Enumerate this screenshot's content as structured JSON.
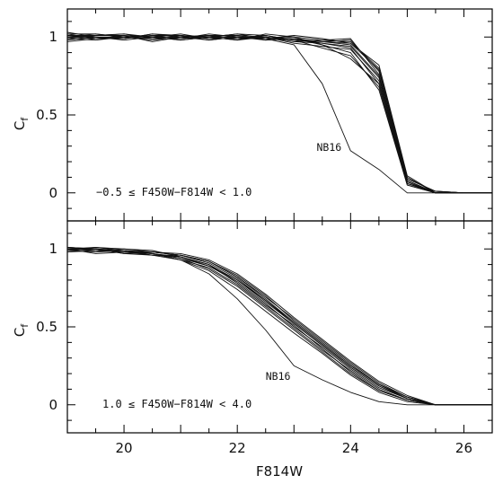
{
  "chart_data": {
    "type": "line",
    "shared_x": {
      "xlabel": "F814W",
      "xlim": [
        19.0,
        26.5
      ],
      "xticks": [
        20,
        22,
        24,
        26
      ],
      "xtick_labels": [
        "20",
        "22",
        "24",
        "26"
      ]
    },
    "panels": [
      {
        "id": "top",
        "ylabel": "C_f",
        "ylim": [
          -0.18,
          1.18
        ],
        "yticks": [
          0,
          0.5,
          1
        ],
        "ytick_labels": [
          "0",
          "0.5",
          "1"
        ],
        "panel_label": "−0.5 ≤ F450W−F814W < 1.0",
        "annotation": {
          "text": "NB16",
          "x": 23.4,
          "y": 0.27
        },
        "x": [
          19.0,
          19.5,
          20.0,
          20.5,
          21.0,
          21.5,
          22.0,
          22.5,
          23.0,
          23.5,
          24.0,
          24.5,
          25.0,
          25.5,
          26.0,
          26.5
        ],
        "series": [
          {
            "values": [
              1.0,
              1.02,
              1.0,
              0.98,
              1.0,
              1.01,
              0.99,
              1.01,
              0.98,
              0.97,
              0.95,
              0.75,
              0.08,
              0.0,
              0.0,
              0.0
            ]
          },
          {
            "values": [
              1.02,
              0.99,
              1.01,
              1.0,
              0.98,
              1.0,
              1.02,
              0.99,
              0.99,
              0.96,
              0.93,
              0.7,
              0.06,
              0.01,
              0.0,
              0.0
            ]
          },
          {
            "values": [
              0.98,
              1.0,
              0.99,
              1.02,
              1.0,
              0.98,
              1.0,
              1.0,
              0.97,
              0.98,
              0.97,
              0.8,
              0.1,
              0.0,
              0.0,
              0.0
            ]
          },
          {
            "values": [
              1.01,
              1.01,
              1.02,
              0.99,
              1.01,
              1.0,
              0.98,
              1.02,
              1.0,
              0.95,
              0.9,
              0.66,
              0.05,
              0.0,
              0.0,
              0.0
            ]
          },
          {
            "values": [
              0.99,
              0.98,
              1.0,
              1.01,
              0.99,
              1.02,
              1.0,
              0.98,
              0.99,
              0.97,
              0.98,
              0.78,
              0.09,
              0.01,
              0.0,
              0.0
            ]
          },
          {
            "values": [
              1.03,
              1.0,
              0.98,
              1.0,
              1.02,
              0.99,
              1.01,
              1.0,
              0.96,
              0.94,
              0.92,
              0.72,
              0.07,
              0.0,
              0.0,
              0.0
            ]
          },
          {
            "values": [
              1.0,
              1.01,
              1.01,
              0.97,
              1.0,
              1.01,
              0.99,
              0.99,
              1.01,
              0.99,
              0.96,
              0.82,
              0.11,
              0.0,
              0.0,
              0.0
            ]
          },
          {
            "values": [
              0.97,
              0.99,
              1.0,
              1.0,
              0.98,
              1.0,
              1.02,
              1.01,
              0.98,
              0.93,
              0.88,
              0.68,
              0.05,
              0.0,
              0.0,
              0.0
            ]
          },
          {
            "values": [
              1.01,
              1.0,
              0.99,
              1.01,
              1.01,
              0.98,
              1.0,
              0.99,
              1.0,
              0.98,
              0.99,
              0.76,
              0.08,
              0.0,
              0.0,
              0.0
            ]
          },
          {
            "values": [
              1.02,
              1.02,
              1.0,
              0.99,
              0.99,
              1.0,
              0.98,
              1.0,
              0.97,
              0.96,
              0.94,
              0.74,
              0.07,
              0.0,
              0.0,
              0.0
            ]
          },
          {
            "values": [
              0.99,
              1.01,
              1.02,
              1.0,
              1.0,
              1.01,
              1.01,
              0.98,
              0.99,
              0.95,
              0.86,
              0.7,
              0.06,
              0.0,
              0.0,
              0.0
            ]
          },
          {
            "values": [
              1.0,
              0.99,
              0.99,
              1.02,
              1.01,
              0.99,
              0.99,
              1.0,
              0.98,
              0.97,
              0.96,
              0.79,
              0.09,
              0.01,
              0.0,
              0.0
            ]
          },
          {
            "name": "NB16",
            "values": [
              1.0,
              1.0,
              1.0,
              1.0,
              1.0,
              1.0,
              1.0,
              0.99,
              0.95,
              0.7,
              0.27,
              0.15,
              0.0,
              0.0,
              0.0,
              0.0
            ]
          }
        ]
      },
      {
        "id": "bottom",
        "ylabel": "C_f",
        "ylim": [
          -0.18,
          1.18
        ],
        "yticks": [
          0,
          0.5,
          1
        ],
        "ytick_labels": [
          "0",
          "0.5",
          "1"
        ],
        "panel_label": "1.0 ≤ F450W−F814W < 4.0",
        "annotation": {
          "text": "NB16",
          "x": 22.5,
          "y": 0.16
        },
        "x": [
          19.0,
          19.5,
          20.0,
          20.5,
          21.0,
          21.5,
          22.0,
          22.5,
          23.0,
          23.5,
          24.0,
          24.5,
          25.0,
          25.5,
          26.0,
          26.5
        ],
        "series": [
          {
            "values": [
              1.0,
              0.99,
              0.98,
              0.97,
              0.95,
              0.9,
              0.8,
              0.66,
              0.52,
              0.38,
              0.24,
              0.12,
              0.04,
              0.0,
              0.0,
              0.0
            ]
          },
          {
            "values": [
              1.01,
              1.0,
              0.99,
              0.96,
              0.93,
              0.88,
              0.77,
              0.63,
              0.49,
              0.35,
              0.22,
              0.1,
              0.03,
              0.0,
              0.0,
              0.0
            ]
          },
          {
            "values": [
              0.99,
              1.0,
              0.97,
              0.98,
              0.96,
              0.92,
              0.82,
              0.69,
              0.55,
              0.41,
              0.27,
              0.14,
              0.05,
              0.0,
              0.0,
              0.0
            ]
          },
          {
            "values": [
              1.0,
              1.01,
              0.99,
              0.97,
              0.94,
              0.89,
              0.79,
              0.65,
              0.5,
              0.37,
              0.23,
              0.11,
              0.04,
              0.0,
              0.0,
              0.0
            ]
          },
          {
            "values": [
              0.98,
              0.99,
              1.0,
              0.98,
              0.96,
              0.91,
              0.81,
              0.67,
              0.53,
              0.39,
              0.25,
              0.13,
              0.04,
              0.0,
              0.0,
              0.0
            ]
          },
          {
            "values": [
              1.0,
              0.97,
              0.98,
              0.96,
              0.95,
              0.9,
              0.78,
              0.64,
              0.51,
              0.36,
              0.21,
              0.09,
              0.03,
              0.0,
              0.0,
              0.0
            ]
          },
          {
            "values": [
              1.01,
              1.0,
              0.98,
              0.98,
              0.97,
              0.93,
              0.84,
              0.71,
              0.56,
              0.42,
              0.28,
              0.15,
              0.06,
              0.0,
              0.0,
              0.0
            ]
          },
          {
            "values": [
              0.99,
              0.98,
              0.99,
              0.97,
              0.94,
              0.87,
              0.76,
              0.62,
              0.48,
              0.34,
              0.2,
              0.09,
              0.03,
              0.0,
              0.0,
              0.0
            ]
          },
          {
            "values": [
              1.0,
              1.0,
              0.97,
              0.96,
              0.96,
              0.92,
              0.83,
              0.7,
              0.54,
              0.4,
              0.26,
              0.13,
              0.05,
              0.0,
              0.0,
              0.0
            ]
          },
          {
            "values": [
              0.99,
              1.01,
              1.0,
              0.99,
              0.95,
              0.89,
              0.8,
              0.67,
              0.52,
              0.38,
              0.24,
              0.12,
              0.04,
              0.0,
              0.0,
              0.0
            ]
          },
          {
            "values": [
              1.0,
              0.99,
              0.98,
              0.97,
              0.93,
              0.86,
              0.74,
              0.6,
              0.46,
              0.33,
              0.19,
              0.08,
              0.02,
              0.0,
              0.0,
              0.0
            ]
          },
          {
            "values": [
              1.01,
              1.0,
              0.99,
              0.98,
              0.96,
              0.92,
              0.82,
              0.68,
              0.53,
              0.39,
              0.25,
              0.13,
              0.05,
              0.0,
              0.0,
              0.0
            ]
          },
          {
            "name": "NB16",
            "values": [
              1.0,
              0.99,
              0.98,
              0.97,
              0.93,
              0.84,
              0.68,
              0.48,
              0.25,
              0.16,
              0.08,
              0.02,
              0.0,
              0.0,
              0.0,
              0.0
            ]
          }
        ]
      }
    ]
  }
}
